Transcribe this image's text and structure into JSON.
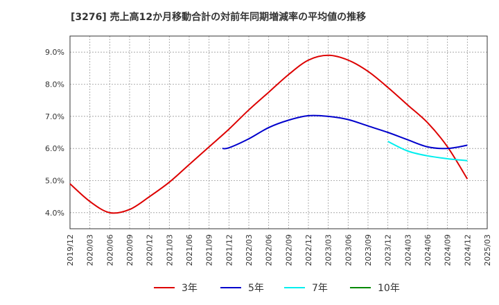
{
  "chart_data": {
    "type": "line",
    "title": "[3276]  売上高12か月移動合計の対前年同期増減率の平均値の推移",
    "xlabel": "",
    "ylabel": "",
    "ylim": [
      3.5,
      9.5
    ],
    "yticks": [
      "4.0%",
      "5.0%",
      "6.0%",
      "7.0%",
      "8.0%",
      "9.0%"
    ],
    "ytick_values": [
      4.0,
      5.0,
      6.0,
      7.0,
      8.0,
      9.0
    ],
    "xticks": [
      "2019/12",
      "2020/03",
      "2020/06",
      "2020/09",
      "2020/12",
      "2021/03",
      "2021/06",
      "2021/09",
      "2021/12",
      "2022/03",
      "2022/06",
      "2022/09",
      "2022/12",
      "2023/03",
      "2023/06",
      "2023/09",
      "2023/12",
      "2024/03",
      "2024/06",
      "2024/09",
      "2024/12",
      "2025/03"
    ],
    "grid": true,
    "legend_position": "bottom",
    "series": [
      {
        "name": "3年",
        "color": "#dd0000",
        "x": [
          "2019/12",
          "2020/03",
          "2020/06",
          "2020/09",
          "2020/12",
          "2021/03",
          "2021/06",
          "2021/09",
          "2021/12",
          "2022/03",
          "2022/06",
          "2022/09",
          "2022/12",
          "2023/03",
          "2023/06",
          "2023/09",
          "2023/12",
          "2024/03",
          "2024/06",
          "2024/09",
          "2024/12"
        ],
        "values": [
          4.9,
          4.35,
          4.0,
          4.1,
          4.5,
          4.95,
          5.5,
          6.05,
          6.6,
          7.2,
          7.75,
          8.3,
          8.75,
          8.9,
          8.75,
          8.4,
          7.9,
          7.35,
          6.8,
          6.05,
          5.05
        ]
      },
      {
        "name": "5年",
        "color": "#0000cc",
        "x": [
          "2021/11",
          "2021/12",
          "2022/03",
          "2022/06",
          "2022/09",
          "2022/12",
          "2023/03",
          "2023/06",
          "2023/09",
          "2023/12",
          "2024/03",
          "2024/06",
          "2024/09",
          "2024/12"
        ],
        "values": [
          6.0,
          6.02,
          6.3,
          6.65,
          6.88,
          7.02,
          7.0,
          6.9,
          6.7,
          6.5,
          6.27,
          6.05,
          6.0,
          6.1
        ]
      },
      {
        "name": "7年",
        "color": "#00eeee",
        "x": [
          "2023/12",
          "2024/03",
          "2024/06",
          "2024/09",
          "2024/12"
        ],
        "values": [
          6.22,
          5.92,
          5.77,
          5.68,
          5.62
        ]
      },
      {
        "name": "10年",
        "color": "#008800",
        "x": [],
        "values": []
      }
    ]
  }
}
